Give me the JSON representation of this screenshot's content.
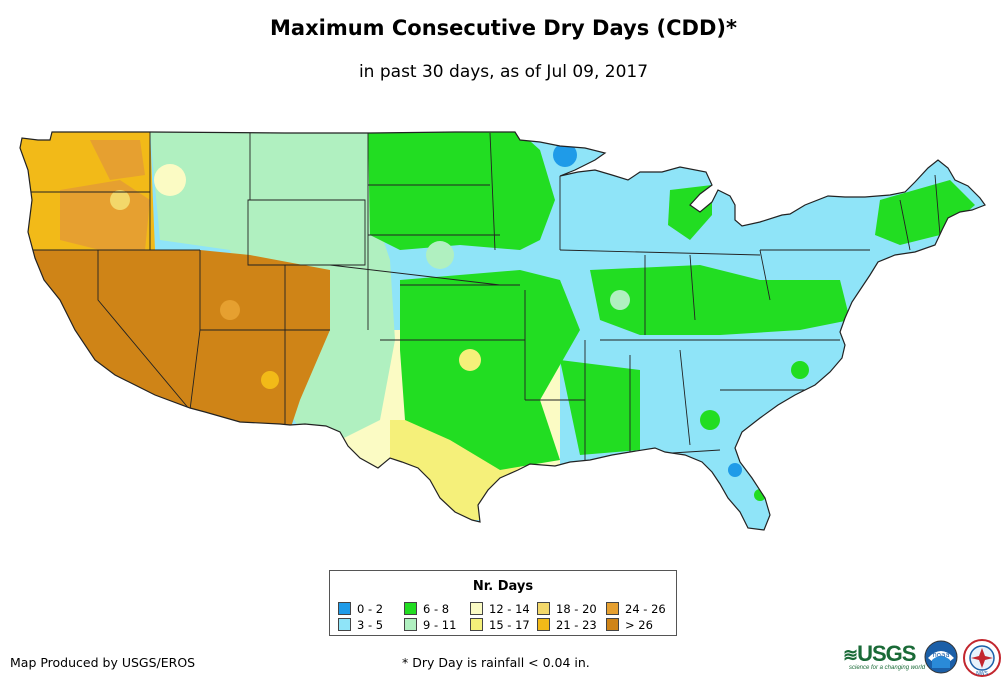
{
  "title": "Maximum Consecutive Dry Days (CDD)*",
  "subtitle": "in past 30 days, as of Jul 09, 2017",
  "legend": {
    "title": "Nr. Days",
    "items": [
      {
        "label": "0 - 2",
        "color": "#1f9be8"
      },
      {
        "label": "3 - 5",
        "color": "#8fe4f8"
      },
      {
        "label": "6 - 8",
        "color": "#22dd22"
      },
      {
        "label": "9 - 11",
        "color": "#b0f0c0"
      },
      {
        "label": "12 - 14",
        "color": "#fbfbc4"
      },
      {
        "label": "15 - 17",
        "color": "#f5f07a"
      },
      {
        "label": "18 - 20",
        "color": "#f3d86a"
      },
      {
        "label": "21 - 23",
        "color": "#f2ba18"
      },
      {
        "label": "24 - 26",
        "color": "#e6a030"
      },
      {
        "label": "> 26",
        "color": "#cf8417"
      }
    ]
  },
  "footer": {
    "credit": "Map Produced by USGS/EROS",
    "note": "* Dry Day is rainfall < 0.04 in."
  },
  "logos": {
    "usgs": "USGS",
    "usgs_tagline": "science for a changing world",
    "noaa": "noaa",
    "nws": "NWS"
  },
  "map": {
    "regions": [
      {
        "id": "west-coast-pacific-northwest",
        "range": "24 - 26"
      },
      {
        "id": "california-great-basin-southwest",
        "range": "> 26"
      },
      {
        "id": "rocky-mountains-high-plains",
        "range": "9 - 11"
      },
      {
        "id": "northern-plains-midwest",
        "range": "6 - 8"
      },
      {
        "id": "great-lakes-northeast-southeast",
        "range": "3 - 5"
      },
      {
        "id": "south-texas",
        "range": "15 - 17"
      }
    ]
  }
}
